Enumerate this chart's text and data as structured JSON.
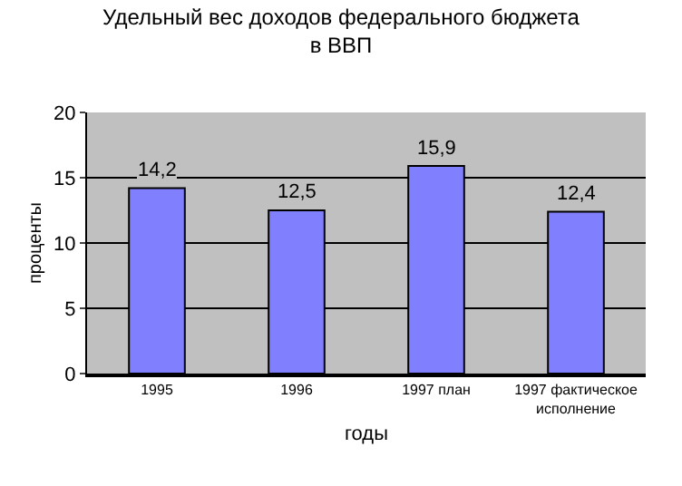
{
  "chart_data": {
    "type": "bar",
    "title": "Удельный вес доходов федерального бюджета в ВВП",
    "xlabel": "годы",
    "ylabel": "проценты",
    "categories": [
      "1995",
      "1996",
      "1997 план",
      "1997 фактическое исполнение"
    ],
    "values": [
      14.2,
      12.5,
      15.9,
      12.4
    ],
    "value_labels": [
      "14,2",
      "12,5",
      "15,9",
      "12,4"
    ],
    "color": "#8080ff",
    "ylim": [
      0,
      20
    ],
    "yticks": [
      0,
      5,
      10,
      15,
      20
    ],
    "grid": "y",
    "legend": false
  }
}
